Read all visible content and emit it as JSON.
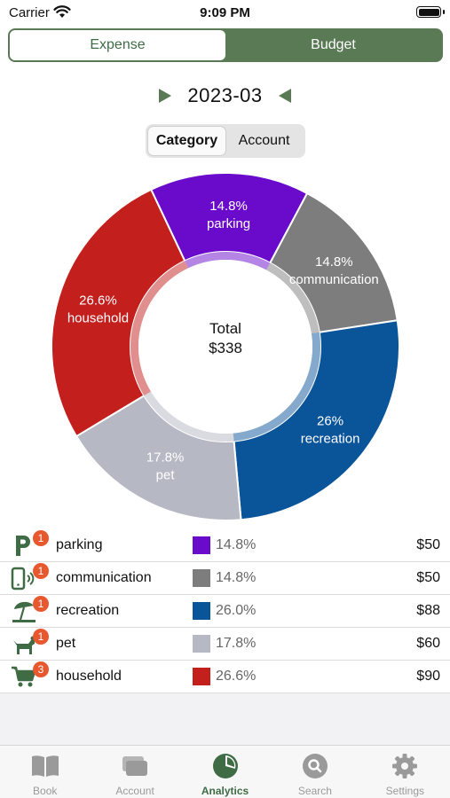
{
  "status": {
    "carrier": "Carrier",
    "time": "9:09 PM"
  },
  "main_tabs": [
    {
      "label": "Expense",
      "active": true
    },
    {
      "label": "Budget",
      "active": false
    }
  ],
  "month": "2023-03",
  "sub_tabs": [
    {
      "label": "Category",
      "active": true
    },
    {
      "label": "Account",
      "active": false
    }
  ],
  "center": {
    "title": "Total",
    "value": "$338"
  },
  "chart_data": {
    "type": "pie",
    "slices": [
      {
        "name": "communication",
        "value": 14.8,
        "label": "14.8%",
        "color": "#7d7d7d"
      },
      {
        "name": "recreation",
        "value": 26.0,
        "label": "26%",
        "color": "#0a549a"
      },
      {
        "name": "pet",
        "value": 17.8,
        "label": "17.8%",
        "color": "#b6b8c4"
      },
      {
        "name": "household",
        "value": 26.6,
        "label": "26.6%",
        "color": "#c21f1d"
      },
      {
        "name": "parking",
        "value": 14.8,
        "label": "14.8%",
        "color": "#6a0bcc"
      }
    ]
  },
  "categories": [
    {
      "name": "parking",
      "badge": "1",
      "percent": "14.8%",
      "amount": "$50",
      "color": "#6a0bcc",
      "icon": "parking-icon"
    },
    {
      "name": "communication",
      "badge": "1",
      "percent": "14.8%",
      "amount": "$50",
      "color": "#7d7d7d",
      "icon": "phone-signal-icon"
    },
    {
      "name": "recreation",
      "badge": "1",
      "percent": "26.0%",
      "amount": "$88",
      "color": "#0a549a",
      "icon": "beach-umbrella-icon"
    },
    {
      "name": "pet",
      "badge": "1",
      "percent": "17.8%",
      "amount": "$60",
      "color": "#b6b8c4",
      "icon": "dog-icon"
    },
    {
      "name": "household",
      "badge": "3",
      "percent": "26.6%",
      "amount": "$90",
      "color": "#c21f1d",
      "icon": "shopping-cart-icon"
    }
  ],
  "tab_bar": [
    {
      "label": "Book",
      "icon": "book-icon",
      "active": false
    },
    {
      "label": "Account",
      "icon": "cards-icon",
      "active": false
    },
    {
      "label": "Analytics",
      "icon": "pie-chart-icon",
      "active": true
    },
    {
      "label": "Search",
      "icon": "search-icon",
      "active": false
    },
    {
      "label": "Settings",
      "icon": "gear-icon",
      "active": false
    }
  ],
  "colors": {
    "accent": "#3f6b45",
    "badge": "#e8582f",
    "tab_inactive": "#9a9a9a"
  }
}
